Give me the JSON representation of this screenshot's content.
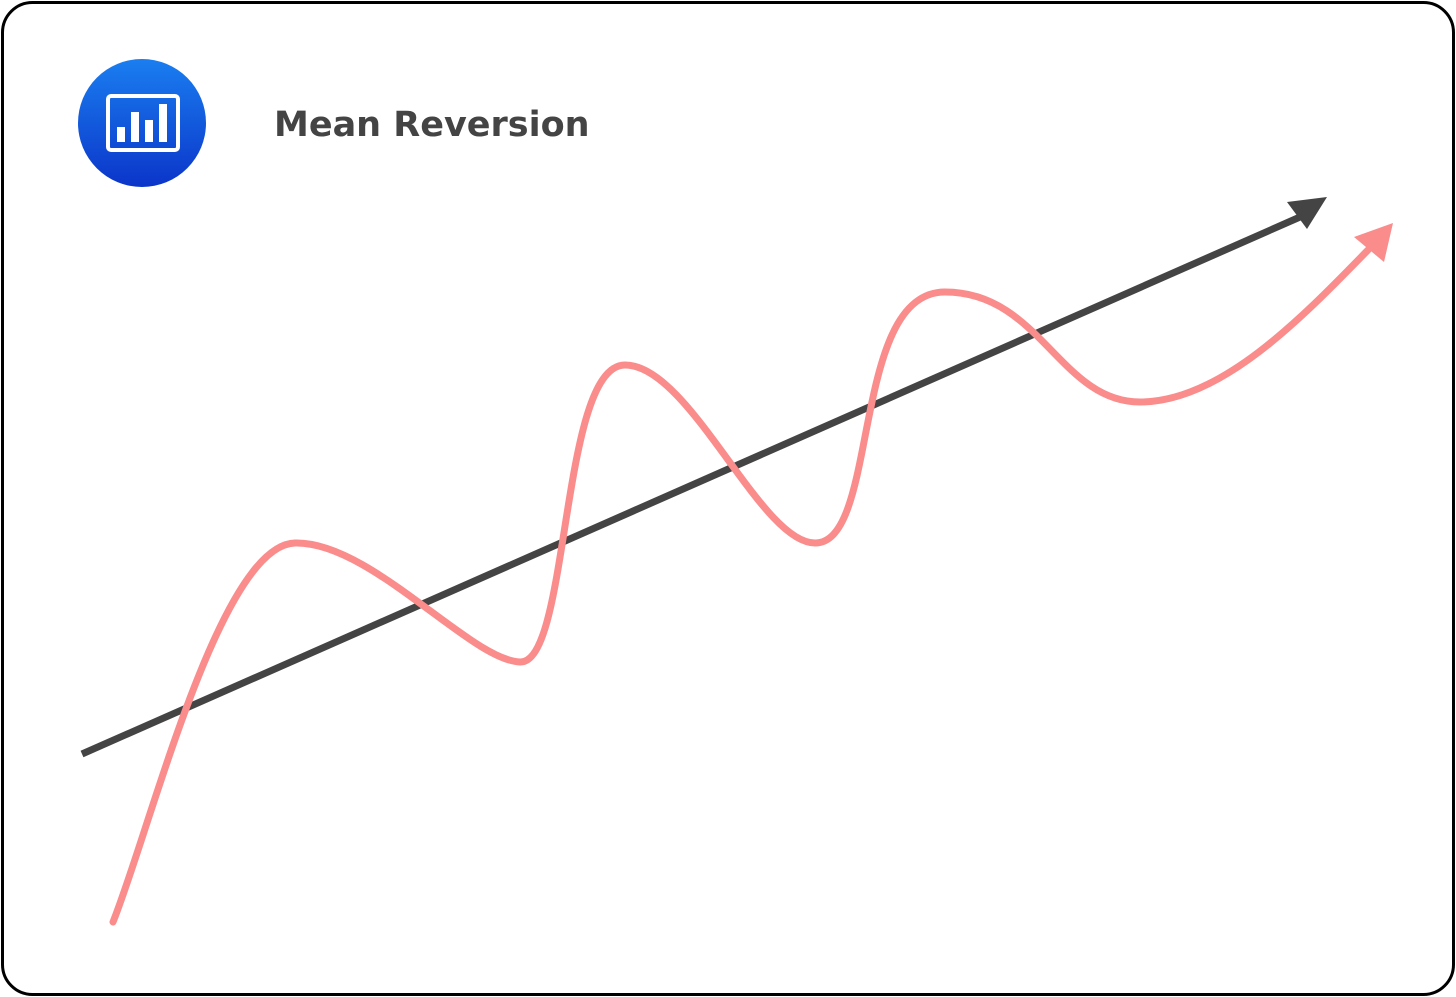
{
  "header": {
    "title": "Mean Reversion"
  }
}
